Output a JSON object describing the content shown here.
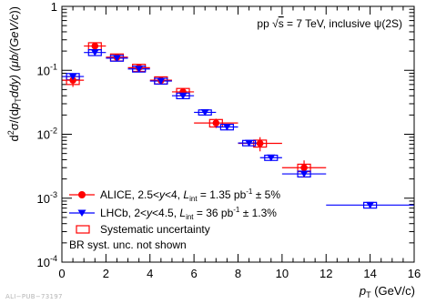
{
  "chart_data": {
    "type": "scatter",
    "title": "",
    "annotation": {
      "prefix": "pp √",
      "sqrt_arg": "s",
      "suffix": " = 7 TeV, inclusive ψ(2S)"
    },
    "xlabel": {
      "main": "p",
      "sub": "T",
      "unit": " (GeV/c)"
    },
    "ylabel": {
      "d": "d",
      "d_sup": "2",
      "sigma": "σ/(d",
      "p": "p",
      "p_sub": "T",
      "dy": "dy) (μb/(GeV/",
      "c": "c",
      "close": "))"
    },
    "xlim": [
      0,
      16
    ],
    "ylim": [
      0.0001,
      1
    ],
    "yscale": "log",
    "x_ticks": [
      "0",
      "2",
      "4",
      "6",
      "8",
      "10",
      "12",
      "14",
      "16"
    ],
    "y_ticks": [
      {
        "base": "10",
        "exp": "-4",
        "value": 0.0001
      },
      {
        "base": "10",
        "exp": "-3",
        "value": 0.001
      },
      {
        "base": "10",
        "exp": "-2",
        "value": 0.01
      },
      {
        "base": "10",
        "exp": "-1",
        "value": 0.1
      },
      {
        "base": "",
        "exp": "",
        "label": "1",
        "value": 1
      }
    ],
    "legend_position": "bottom-left",
    "series": [
      {
        "name": "ALICE",
        "legend": {
          "pre": "ALICE, 2.5<",
          "y1": "y",
          "mid": "<4, ",
          "L": "L",
          "Lsub": "int",
          "post": " = 1.35 pb",
          "sup": "-1",
          "end": " ± 5%"
        },
        "color": "#ff0000",
        "marker": "circle",
        "points": [
          {
            "x": 0.5,
            "xerr": 0.5,
            "y": 0.07,
            "yerr_low": 0.015,
            "yerr_high": 0.02,
            "sys": 0.01
          },
          {
            "x": 1.5,
            "xerr": 0.5,
            "y": 0.24,
            "yerr_low": 0.025,
            "yerr_high": 0.03,
            "sys": 0.03
          },
          {
            "x": 2.5,
            "xerr": 0.5,
            "y": 0.16,
            "yerr_low": 0.015,
            "yerr_high": 0.015,
            "sys": 0.02
          },
          {
            "x": 3.5,
            "xerr": 0.5,
            "y": 0.11,
            "yerr_low": 0.01,
            "yerr_high": 0.01,
            "sys": 0.014
          },
          {
            "x": 4.5,
            "xerr": 0.5,
            "y": 0.07,
            "yerr_low": 0.007,
            "yerr_high": 0.007,
            "sys": 0.009
          },
          {
            "x": 5.5,
            "xerr": 0.5,
            "y": 0.046,
            "yerr_low": 0.006,
            "yerr_high": 0.006,
            "sys": 0.006
          },
          {
            "x": 7.0,
            "xerr": 1.0,
            "y": 0.015,
            "yerr_low": 0.0025,
            "yerr_high": 0.0025,
            "sys": 0.002
          },
          {
            "x": 9.0,
            "xerr": 1.0,
            "y": 0.0072,
            "yerr_low": 0.0018,
            "yerr_high": 0.0018,
            "sys": 0.0009
          },
          {
            "x": 11.0,
            "xerr": 1.0,
            "y": 0.003,
            "yerr_low": 0.0009,
            "yerr_high": 0.0009,
            "sys": 0.0004
          }
        ]
      },
      {
        "name": "LHCb",
        "legend": {
          "pre": "LHCb, 2<",
          "y1": "y",
          "mid": "<4.5, ",
          "L": "L",
          "Lsub": "int",
          "post": " = 36 pb",
          "sup": "-1",
          "end": " ± 1.3%"
        },
        "color": "#0000ff",
        "marker": "triangle-down",
        "points": [
          {
            "x": 0.5,
            "xerr": 0.5,
            "y": 0.08,
            "yerr_low": 0.008,
            "yerr_high": 0.008,
            "sys": 0.009
          },
          {
            "x": 1.5,
            "xerr": 0.5,
            "y": 0.19,
            "yerr_low": 0.01,
            "yerr_high": 0.01,
            "sys": 0.02
          },
          {
            "x": 2.5,
            "xerr": 0.5,
            "y": 0.155,
            "yerr_low": 0.008,
            "yerr_high": 0.008,
            "sys": 0.016
          },
          {
            "x": 3.5,
            "xerr": 0.5,
            "y": 0.105,
            "yerr_low": 0.005,
            "yerr_high": 0.005,
            "sys": 0.011
          },
          {
            "x": 4.5,
            "xerr": 0.5,
            "y": 0.068,
            "yerr_low": 0.003,
            "yerr_high": 0.003,
            "sys": 0.007
          },
          {
            "x": 5.5,
            "xerr": 0.5,
            "y": 0.04,
            "yerr_low": 0.002,
            "yerr_high": 0.002,
            "sys": 0.004
          },
          {
            "x": 6.5,
            "xerr": 0.5,
            "y": 0.022,
            "yerr_low": 0.001,
            "yerr_high": 0.001,
            "sys": 0.002
          },
          {
            "x": 7.5,
            "xerr": 0.5,
            "y": 0.013,
            "yerr_low": 0.0007,
            "yerr_high": 0.0007,
            "sys": 0.0013
          },
          {
            "x": 8.5,
            "xerr": 0.5,
            "y": 0.0073,
            "yerr_low": 0.0004,
            "yerr_high": 0.0004,
            "sys": 0.0007
          },
          {
            "x": 9.5,
            "xerr": 0.5,
            "y": 0.0043,
            "yerr_low": 0.0003,
            "yerr_high": 0.0003,
            "sys": 0.0004
          },
          {
            "x": 11.0,
            "xerr": 1.0,
            "y": 0.0024,
            "yerr_low": 0.0002,
            "yerr_high": 0.0002,
            "sys": 0.00025
          },
          {
            "x": 14.0,
            "xerr": 2.0,
            "y": 0.00078,
            "yerr_low": 7e-05,
            "yerr_high": 7e-05,
            "sys": 8e-05
          }
        ]
      }
    ],
    "legend_extra": [
      {
        "key": "systematic",
        "label": "Systematic uncertainty",
        "marker": "open-box",
        "color": "#ff0000"
      },
      {
        "key": "br",
        "label": "BR syst. unc. not shown",
        "marker": "none"
      }
    ]
  },
  "watermark": "ALI−PUB−73197"
}
